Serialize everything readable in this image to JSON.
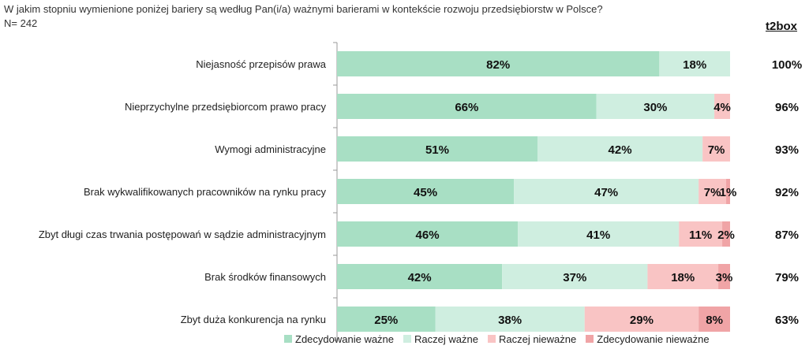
{
  "header": {
    "question": "W jakim stopniu wymienione poniżej bariery są według Pan(i/a) ważnymi barierami w kontekście rozwoju przedsiębiorstw w Polsce?",
    "sample": "N= 242",
    "t2box_label": "t2box"
  },
  "colors": {
    "Zdecydowanie ważne": "#a8dfc4",
    "Raczej ważne": "#cfeee0",
    "Raczej nieważne": "#f9c4c4",
    "Zdecydowanie nieważne": "#f0a4a6"
  },
  "chart_data": {
    "type": "bar",
    "orientation": "horizontal",
    "stacked": true,
    "unit": "%",
    "categories": [
      "Niejasność przepisów prawa",
      "Nieprzychylne przedsiębiorcom prawo pracy",
      "Wymogi administracyjne",
      "Brak wykwalifikowanych pracowników na rynku pracy",
      "Zbyt długi czas trwania postępowań w sądzie administracyjnym",
      "Brak środków finansowych",
      "Zbyt duża konkurencja na rynku"
    ],
    "series": [
      {
        "name": "Zdecydowanie ważne",
        "values": [
          82,
          66,
          51,
          45,
          46,
          42,
          25
        ]
      },
      {
        "name": "Raczej ważne",
        "values": [
          18,
          30,
          42,
          47,
          41,
          37,
          38
        ]
      },
      {
        "name": "Raczej nieważne",
        "values": [
          0,
          4,
          7,
          7,
          11,
          18,
          29
        ]
      },
      {
        "name": "Zdecydowanie nieważne",
        "values": [
          0,
          0,
          0,
          1,
          2,
          3,
          8
        ]
      }
    ],
    "labels": [
      [
        "82%",
        "18%",
        "",
        ""
      ],
      [
        "66%",
        "30%",
        "4%",
        ""
      ],
      [
        "51%",
        "42%",
        "7%",
        ""
      ],
      [
        "45%",
        "47%",
        "7%",
        "1%"
      ],
      [
        "46%",
        "41%",
        "11%",
        "2%"
      ],
      [
        "42%",
        "37%",
        "18%",
        "3%"
      ],
      [
        "25%",
        "38%",
        "29%",
        "8%"
      ]
    ],
    "t2box": [
      "100%",
      "96%",
      "93%",
      "92%",
      "87%",
      "79%",
      "63%"
    ],
    "xlim": [
      0,
      100
    ],
    "legend_position": "bottom"
  }
}
